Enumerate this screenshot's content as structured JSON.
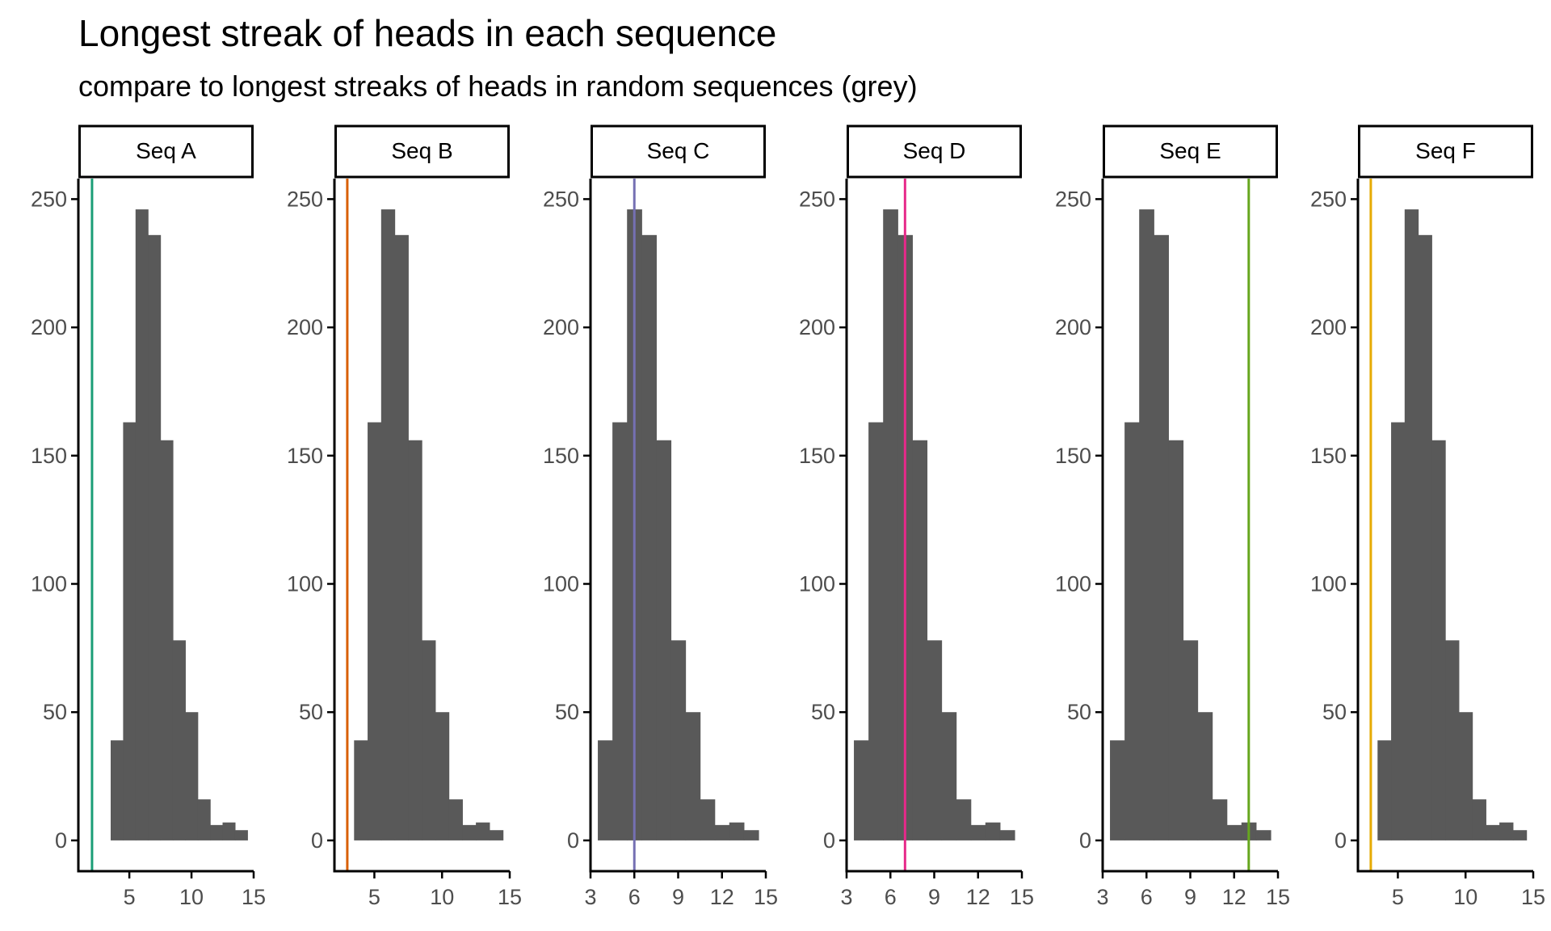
{
  "chart_data": {
    "type": "bar",
    "title": "Longest streak of heads in each sequence",
    "subtitle": "compare to longest streaks of heads in random sequences (grey)",
    "xlabel": "",
    "ylabel": "",
    "shared_histogram": {
      "bin_centers": [
        4,
        5,
        6,
        7,
        8,
        9,
        10,
        11,
        12,
        13,
        14
      ],
      "counts": [
        39,
        163,
        246,
        236,
        156,
        78,
        50,
        16,
        6,
        7,
        4
      ],
      "color": "#595959"
    },
    "ylim": [
      -12,
      258
    ],
    "y_ticks": [
      0,
      50,
      100,
      150,
      200,
      250
    ],
    "grid": false,
    "panels": [
      {
        "label": "Seq A",
        "observed": 2,
        "line_color": "#1B9E77",
        "xlim": [
          0.9,
          15
        ],
        "x_ticks": [
          5,
          10,
          15
        ]
      },
      {
        "label": "Seq B",
        "observed": 3,
        "line_color": "#D95F02",
        "xlim": [
          2.05,
          15
        ],
        "x_ticks": [
          5,
          10,
          15
        ]
      },
      {
        "label": "Seq C",
        "observed": 6,
        "line_color": "#7570B3",
        "xlim": [
          3,
          15
        ],
        "x_ticks": [
          3,
          6,
          9,
          12,
          15
        ]
      },
      {
        "label": "Seq D",
        "observed": 7,
        "line_color": "#E7298A",
        "xlim": [
          3,
          15
        ],
        "x_ticks": [
          3,
          6,
          9,
          12,
          15
        ]
      },
      {
        "label": "Seq E",
        "observed": 13,
        "line_color": "#66A61E",
        "xlim": [
          3,
          15
        ],
        "x_ticks": [
          3,
          6,
          9,
          12,
          15
        ]
      },
      {
        "label": "Seq F",
        "observed": 3,
        "line_color": "#E6AB02",
        "xlim": [
          2.05,
          15
        ],
        "x_ticks": [
          5,
          10,
          15
        ]
      }
    ]
  }
}
